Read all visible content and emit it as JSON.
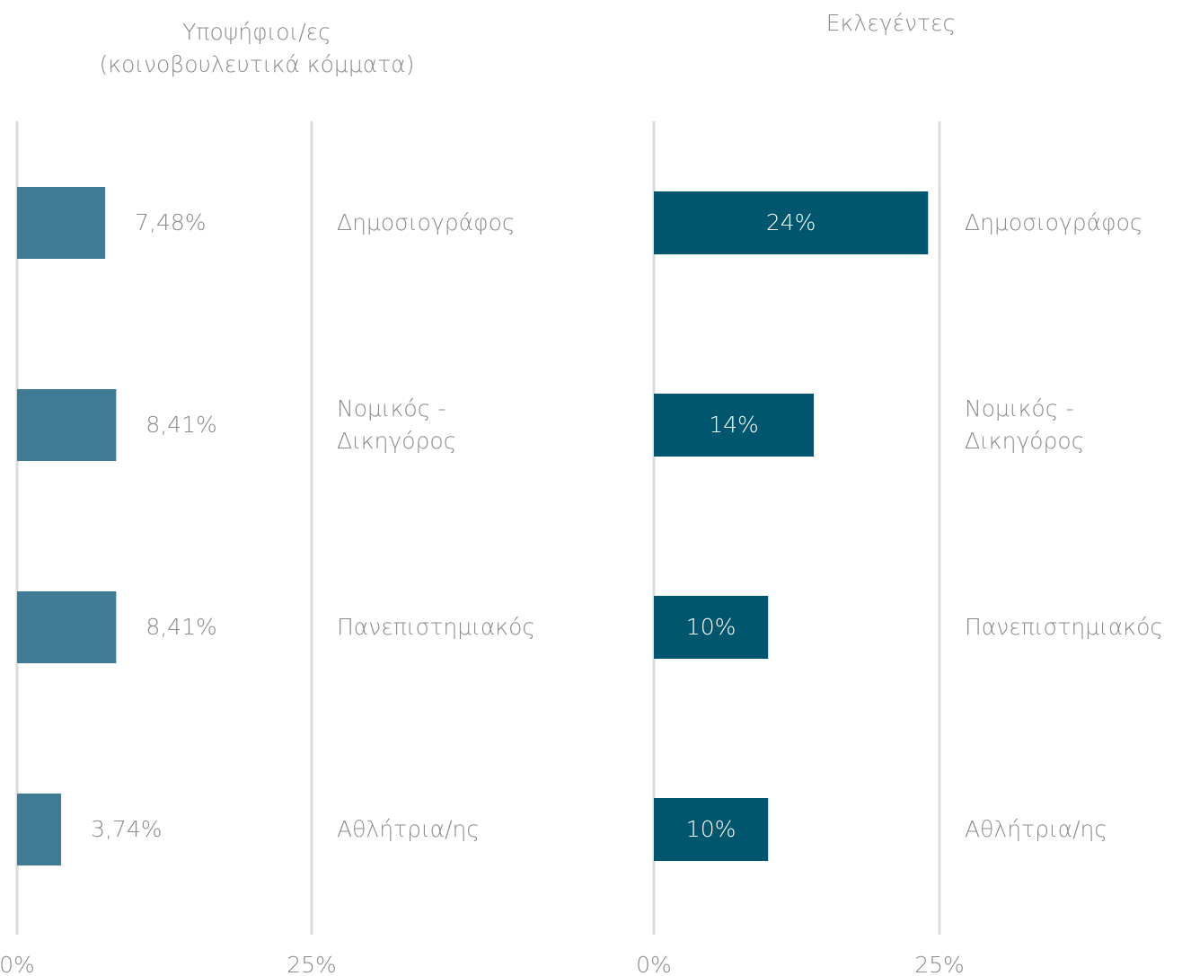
{
  "chart_data": [
    {
      "type": "bar",
      "orientation": "horizontal",
      "title": "Υποψήφιοι/ες\n(κοινοβουλευτικά κόμματα)",
      "categories": [
        "Δημοσιογράφος",
        "Νομικός - Δικηγόρος",
        "Πανεπιστημιακός",
        "Αθλήτρια/ης"
      ],
      "values": [
        7.48,
        8.41,
        8.41,
        3.74
      ],
      "value_labels": [
        "7,48%",
        "8,41%",
        "8,41%",
        "3,74%"
      ],
      "color": "#3f7b94",
      "xlim": [
        0,
        25
      ],
      "xticks": [
        {
          "value": 0,
          "label": "0%"
        },
        {
          "value": 25,
          "label": "25%"
        }
      ],
      "grid": true
    },
    {
      "type": "bar",
      "orientation": "horizontal",
      "title": "Εκλεγέντες",
      "categories": [
        "Δημοσιογράφος",
        "Νομικός - Δικηγόρος",
        "Πανεπιστημιακός",
        "Αθλήτρια/ης"
      ],
      "values": [
        24,
        14,
        10,
        10
      ],
      "value_labels": [
        "24%",
        "14%",
        "10%",
        "10%"
      ],
      "color": "#00566e",
      "xlim": [
        0,
        25
      ],
      "xticks": [
        {
          "value": 0,
          "label": "0%"
        },
        {
          "value": 25,
          "label": "25%"
        }
      ],
      "grid": true
    }
  ]
}
